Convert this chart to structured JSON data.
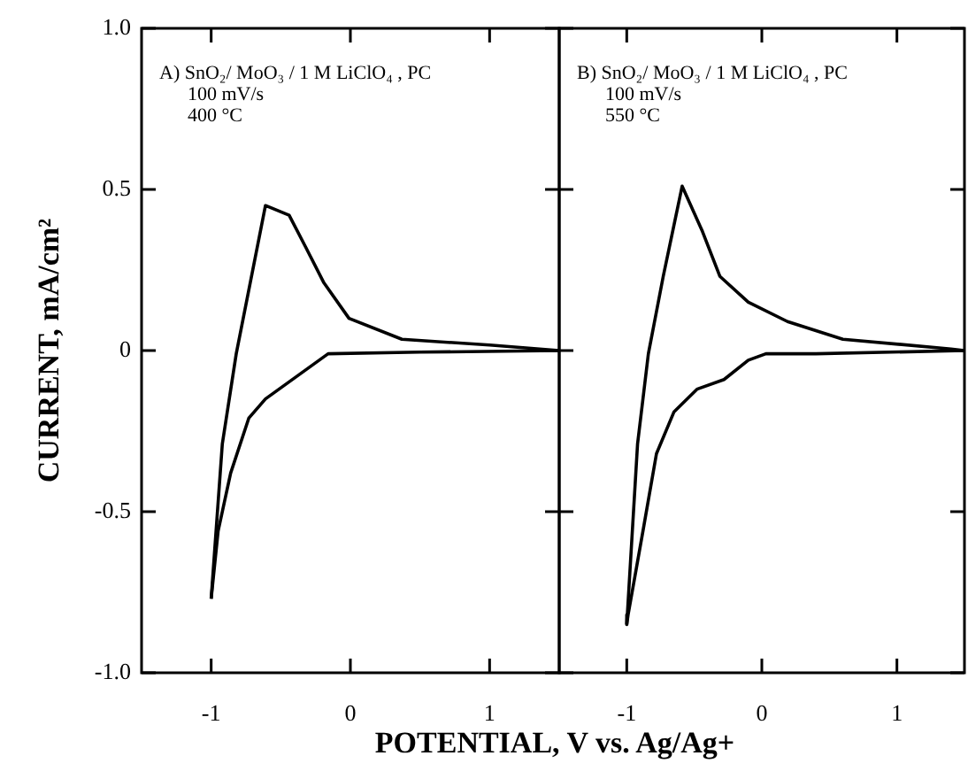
{
  "chart_data": [
    {
      "type": "line",
      "xlabel": "POTENTIAL, V vs. Ag/Ag+",
      "ylabel": "CURRENT, mA/cm²",
      "annotations": [
        "A) SnO₂/ MoO₃ / 1 M LiClO₄ , PC",
        "100 mV/s",
        "400 °C"
      ],
      "series": [
        {
          "color": "#000000",
          "x": [
            -1,
            -0.92,
            -0.82,
            -0.61,
            -0.44,
            -0.32,
            -0.19,
            -0.01,
            0.37,
            1.0,
            1.5
          ],
          "values": [
            -0.77,
            -0.29,
            -0.01,
            0.45,
            0.42,
            0.32,
            0.21,
            0.1,
            0.035,
            0.017,
            0
          ]
        },
        {
          "color": "#000000",
          "x": [
            1.5,
            0.5,
            -0.16,
            -0.61,
            -0.73,
            -0.86,
            -0.95,
            -1
          ],
          "values": [
            0,
            -0.005,
            -0.01,
            -0.15,
            -0.21,
            -0.38,
            -0.56,
            -0.77
          ]
        }
      ],
      "xlim": [
        -1.5,
        1.5
      ],
      "xticks": [
        -1,
        0,
        1
      ],
      "ylim": [
        -1,
        1
      ],
      "yticks": [
        {
          "value": -1,
          "label": "-1.0"
        },
        -0.5,
        0,
        0.5,
        {
          "value": 1,
          "label": "1.0"
        }
      ],
      "grid": false,
      "legend": false
    },
    {
      "type": "line",
      "annotations": [
        "B) SnO₂/ MoO₃ / 1 M LiClO₄ , PC",
        "100 mV/s",
        "550 °C"
      ],
      "series": [
        {
          "color": "#000000",
          "x": [
            -1,
            -0.92,
            -0.84,
            -0.73,
            -0.59,
            -0.44,
            -0.31,
            -0.1,
            0.19,
            0.6,
            1.4,
            1.5
          ],
          "values": [
            -0.85,
            -0.29,
            -0.01,
            0.23,
            0.51,
            0.37,
            0.23,
            0.15,
            0.09,
            0.035,
            0.005,
            0
          ]
        },
        {
          "color": "#000000",
          "x": [
            1.5,
            0.4,
            0.03,
            -0.1,
            -0.28,
            -0.48,
            -0.65,
            -0.78,
            -0.88,
            -0.99,
            -1
          ],
          "values": [
            0,
            -0.01,
            -0.01,
            -0.03,
            -0.09,
            -0.12,
            -0.19,
            -0.32,
            -0.56,
            -0.82,
            -0.85
          ]
        }
      ],
      "xlim": [
        -1.5,
        1.5
      ],
      "xticks": [
        -1,
        0,
        1
      ],
      "ylim": [
        -1,
        1
      ],
      "yticks": [
        -1,
        -0.5,
        0,
        0.5,
        1
      ],
      "tick_labels": "x",
      "grid": false,
      "legend": false
    }
  ]
}
